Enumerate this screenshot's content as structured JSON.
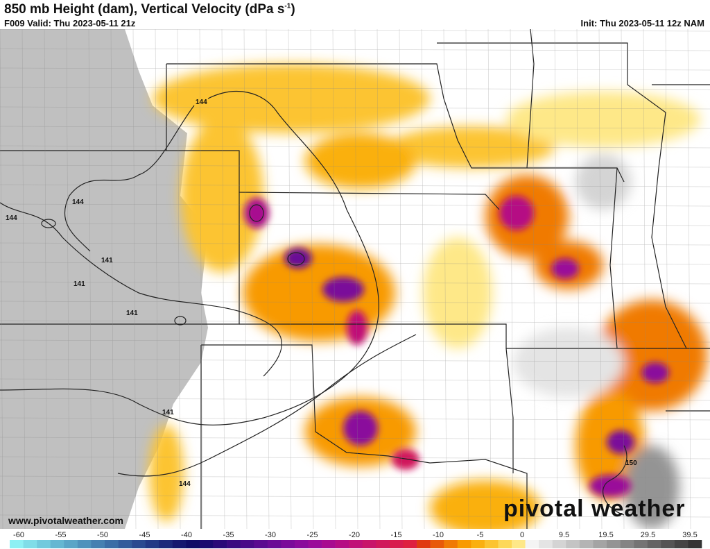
{
  "header": {
    "title": "850 mb Height (dam), Vertical Velocity (dPa s",
    "title_sup": "-1",
    "title_end": ")",
    "valid": "F009 Valid: Thu 2023-05-11 21z",
    "init": "Init: Thu 2023-05-11 12z NAM"
  },
  "footer": {
    "website": "www.pivotalweather.com",
    "logo": "pivotal weather"
  },
  "contour_labels": [
    "144",
    "144",
    "141",
    "141",
    "141",
    "144",
    "141",
    "144",
    "150"
  ],
  "colorbar": {
    "ticks": [
      "-60",
      "-55",
      "-50",
      "-45",
      "-40",
      "-35",
      "-30",
      "-25",
      "-20",
      "-15",
      "-10",
      "-5",
      "0",
      "9.5",
      "19.5",
      "29.5",
      "39.5"
    ],
    "colors": [
      "#8ef0f4",
      "#80dde8",
      "#72cadd",
      "#65b7d2",
      "#5aa5c7",
      "#4f92bc",
      "#4580b1",
      "#3b6ea6",
      "#325c9b",
      "#2a4a90",
      "#223985",
      "#1b287a",
      "#14186f",
      "#0e0d66",
      "#1a0a70",
      "#2a0a78",
      "#3a0a80",
      "#4a0a88",
      "#5a0a90",
      "#6a0a96",
      "#7a0a9a",
      "#8a0a9c",
      "#9a0a9a",
      "#a80a90",
      "#b50c84",
      "#c01078",
      "#c8146a",
      "#d0185c",
      "#d81c4e",
      "#de2040",
      "#e03a10",
      "#e85a08",
      "#f07a04",
      "#f89a00",
      "#fab010",
      "#fcc430",
      "#fdd858",
      "#fee888",
      "#f4f4f4",
      "#e4e4e4",
      "#d4d4d4",
      "#c4c4c4",
      "#b4b4b4",
      "#a4a4a4",
      "#949494",
      "#848484",
      "#747474",
      "#646464",
      "#545454",
      "#444444",
      "#343434"
    ]
  }
}
